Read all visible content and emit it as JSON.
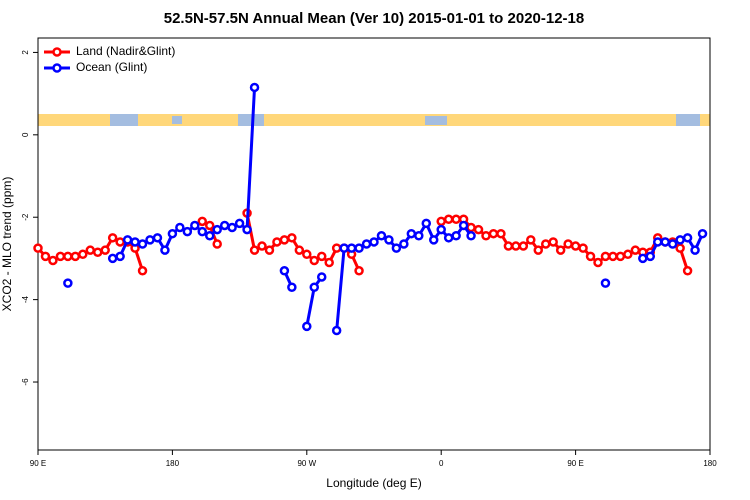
{
  "chart_data": {
    "type": "line",
    "title": "52.5N-57.5N Annual Mean (Ver 10)   2015-01-01 to 2020-12-18",
    "xlabel": "Longitude (deg E)",
    "ylabel": "XCO2 - MLO trend (ppm)",
    "x": [
      -270,
      -265,
      -260,
      -255,
      -250,
      -245,
      -240,
      -235,
      -230,
      -225,
      -220,
      -215,
      -210,
      -205,
      -200,
      -195,
      -190,
      -185,
      -180,
      -175,
      -170,
      -165,
      -160,
      -155,
      -150,
      -145,
      -140,
      -135,
      -130,
      -125,
      -120,
      -115,
      -110,
      -105,
      -100,
      -95,
      -90,
      -85,
      -80,
      -75,
      -70,
      -65,
      -60,
      -55,
      -50,
      -45,
      -40,
      -35,
      -30,
      -25,
      -20,
      -15,
      -10,
      -5,
      0,
      5,
      10,
      15,
      20,
      25,
      30,
      35,
      40,
      45,
      50,
      55,
      60,
      65,
      70,
      75,
      80,
      85,
      90,
      95,
      100,
      105,
      110,
      115,
      120,
      125,
      130,
      135,
      140,
      145,
      150,
      155,
      160,
      165,
      170,
      175,
      180
    ],
    "series": [
      {
        "name": "Land (Nadir&Glint)",
        "color": "#ff0000",
        "values": [
          -2.75,
          -2.95,
          -3.05,
          -2.95,
          -2.95,
          -2.95,
          -2.9,
          -2.8,
          -2.85,
          -2.8,
          -2.5,
          -2.6,
          -2.6,
          -2.75,
          -3.3,
          null,
          null,
          null,
          null,
          null,
          null,
          null,
          -2.1,
          -2.2,
          -2.65,
          null,
          null,
          null,
          -1.9,
          -2.8,
          -2.7,
          -2.8,
          -2.6,
          -2.55,
          -2.5,
          -2.8,
          -2.9,
          -3.05,
          -2.95,
          -3.1,
          -2.75,
          -2.75,
          -2.9,
          -3.3,
          null,
          null,
          null,
          null,
          null,
          null,
          null,
          null,
          null,
          null,
          -2.1,
          -2.05,
          -2.05,
          -2.05,
          -2.25,
          -2.3,
          -2.45,
          -2.4,
          -2.4,
          -2.7,
          -2.7,
          -2.7,
          -2.55,
          -2.8,
          -2.65,
          -2.6,
          -2.8,
          -2.65,
          -2.7,
          -2.75,
          -2.95,
          -3.1,
          -2.95,
          -2.95,
          -2.95,
          -2.9,
          -2.8,
          -2.85,
          -2.85,
          -2.5,
          -2.6,
          -2.6,
          -2.75,
          -3.3,
          null,
          null,
          null
        ]
      },
      {
        "name": "Ocean (Glint)",
        "color": "#0000ff",
        "values": [
          null,
          null,
          null,
          null,
          -3.6,
          null,
          null,
          null,
          null,
          null,
          -3.0,
          -2.95,
          -2.55,
          -2.6,
          -2.65,
          -2.55,
          -2.5,
          -2.8,
          -2.4,
          -2.25,
          -2.35,
          -2.2,
          -2.35,
          -2.45,
          -2.3,
          -2.2,
          -2.25,
          -2.15,
          -2.3,
          1.15,
          null,
          null,
          null,
          -3.3,
          -3.7,
          null,
          -4.65,
          -3.7,
          -3.45,
          null,
          -4.75,
          -2.75,
          -2.75,
          -2.75,
          -2.65,
          -2.6,
          -2.45,
          -2.55,
          -2.75,
          -2.65,
          -2.4,
          -2.45,
          -2.15,
          -2.55,
          -2.3,
          -2.5,
          -2.45,
          -2.2,
          -2.45,
          null,
          null,
          null,
          null,
          null,
          null,
          null,
          null,
          null,
          null,
          null,
          null,
          null,
          null,
          null,
          null,
          null,
          -3.6,
          null,
          null,
          null,
          null,
          -3.0,
          -2.95,
          -2.6,
          -2.6,
          -2.65,
          -2.55,
          -2.5,
          -2.8,
          -2.4,
          null
        ]
      }
    ],
    "xlim": [
      -270,
      180
    ],
    "xticks": [
      {
        "value": -270,
        "label": "90 E"
      },
      {
        "value": -180,
        "label": "180"
      },
      {
        "value": -90,
        "label": "90 W"
      },
      0,
      {
        "value": 90,
        "label": "90 E"
      },
      180
    ],
    "ylim": [
      -7.65,
      2.35
    ],
    "yticks": [
      2,
      0,
      -2,
      -4,
      -6
    ],
    "legend": "top-left"
  }
}
